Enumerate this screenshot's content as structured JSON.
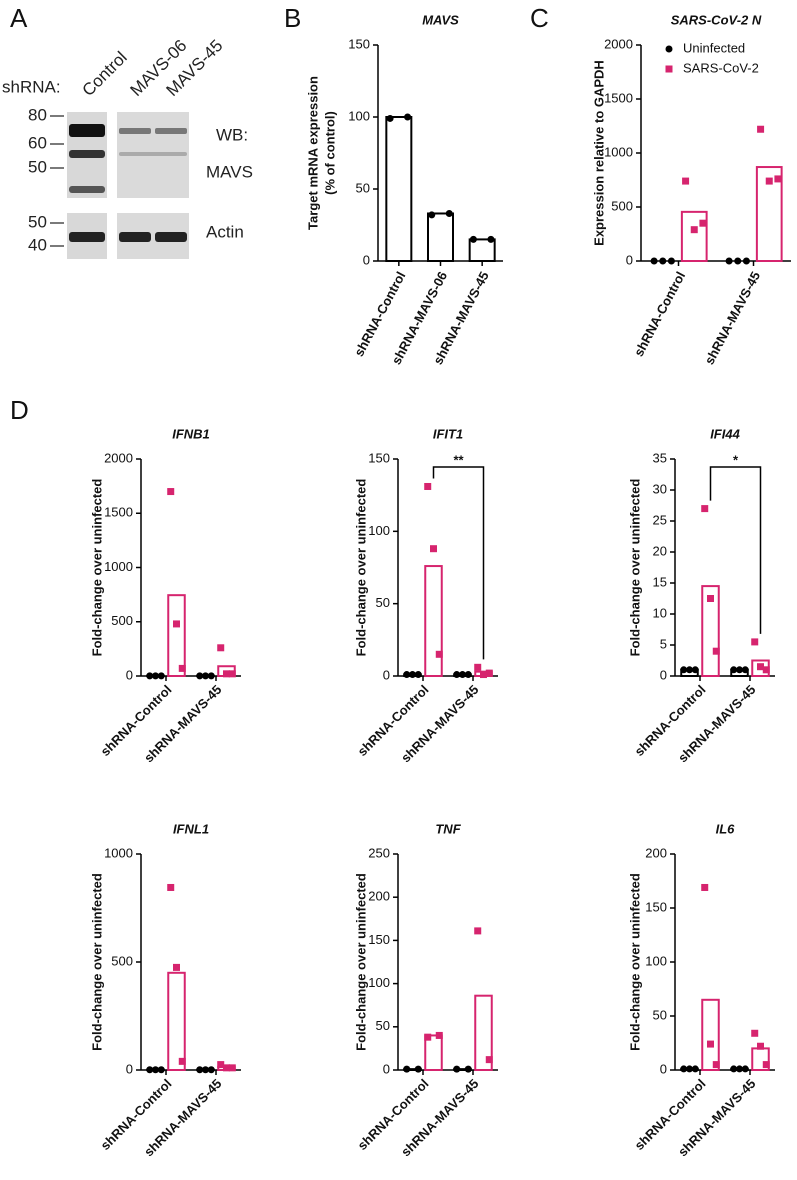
{
  "panel_labels": [
    "A",
    "B",
    "C",
    "D"
  ],
  "blot": {
    "row_label": "shRNA:",
    "lanes": [
      "Control",
      "MAVS-06",
      "MAVS-45"
    ],
    "wb_label": "WB:",
    "targets": [
      "MAVS",
      "Actin"
    ],
    "markers": [
      "80",
      "60",
      "50",
      "50",
      "40"
    ]
  },
  "chart_data": [
    {
      "type": "bar",
      "title": "MAVS",
      "ylabel": [
        "Target mRNA expression",
        "(% of control)"
      ],
      "categories": [
        "shRNA-Control",
        "shRNA-MAVS-06",
        "shRNA-MAVS-45"
      ],
      "values": [
        100,
        33,
        15
      ],
      "points": [
        [
          99,
          100
        ],
        [
          32,
          33
        ],
        [
          15,
          15
        ]
      ],
      "color": "#000000",
      "marker": "circle",
      "ylim": [
        0,
        150
      ],
      "yticks": [
        0,
        50,
        100,
        150
      ]
    },
    {
      "type": "bar",
      "title": "SARS-CoV-2 N",
      "ylabel": "Expression relative to GAPDH",
      "categories": [
        "shRNA-Control",
        "shRNA-MAVS-45"
      ],
      "legend": "upper right",
      "series": [
        {
          "name": "Uninfected",
          "color": "#000000",
          "marker": "circle",
          "values": [
            0,
            0
          ],
          "points": [
            [
              0,
              0,
              0
            ],
            [
              0,
              0,
              0
            ]
          ]
        },
        {
          "name": "SARS-CoV-2",
          "color": "#d6246e",
          "marker": "square",
          "values": [
            455,
            870
          ],
          "points": [
            [
              740,
              290,
              350
            ],
            [
              1220,
              740,
              760
            ]
          ]
        }
      ],
      "ylim": [
        0,
        2000
      ],
      "yticks": [
        0,
        500,
        1000,
        1500,
        2000
      ]
    },
    {
      "type": "bar",
      "title": "IFNB1",
      "ylabel": "Fold-change over uninfected",
      "categories": [
        "shRNA-Control",
        "shRNA-MAVS-45"
      ],
      "series": [
        {
          "color": "#000000",
          "marker": "circle",
          "values": [
            1,
            1
          ],
          "points": [
            [
              1,
              1,
              1
            ],
            [
              1,
              1,
              1
            ]
          ]
        },
        {
          "color": "#d6246e",
          "marker": "square",
          "values": [
            745,
            90
          ],
          "points": [
            [
              1700,
              480,
              70
            ],
            [
              260,
              20,
              20
            ]
          ]
        }
      ],
      "ylim": [
        0,
        2000
      ],
      "yticks": [
        0,
        500,
        1000,
        1500,
        2000
      ]
    },
    {
      "type": "bar",
      "title": "IFIT1",
      "ylabel": "Fold-change over uninfected",
      "categories": [
        "shRNA-Control",
        "shRNA-MAVS-45"
      ],
      "annotation": "**",
      "series": [
        {
          "color": "#000000",
          "marker": "circle",
          "values": [
            1,
            1
          ],
          "points": [
            [
              1,
              1,
              1
            ],
            [
              1,
              1,
              1
            ]
          ]
        },
        {
          "color": "#d6246e",
          "marker": "square",
          "values": [
            76,
            3
          ],
          "points": [
            [
              131,
              88,
              15
            ],
            [
              6,
              1,
              2
            ]
          ]
        }
      ],
      "ylim": [
        0,
        150
      ],
      "yticks": [
        0,
        50,
        100,
        150
      ]
    },
    {
      "type": "bar",
      "title": "IFI44",
      "ylabel": "Fold-change over uninfected",
      "categories": [
        "shRNA-Control",
        "shRNA-MAVS-45"
      ],
      "annotation": "*",
      "series": [
        {
          "color": "#000000",
          "marker": "circle",
          "values": [
            1,
            1
          ],
          "points": [
            [
              1,
              1,
              1
            ],
            [
              1,
              1,
              1
            ]
          ]
        },
        {
          "color": "#d6246e",
          "marker": "square",
          "values": [
            14.5,
            2.5
          ],
          "points": [
            [
              27,
              12.5,
              4
            ],
            [
              5.5,
              1.5,
              1
            ]
          ]
        }
      ],
      "ylim": [
        0,
        35
      ],
      "yticks": [
        0,
        5,
        10,
        15,
        20,
        25,
        30,
        35
      ]
    },
    {
      "type": "bar",
      "title": "IFNL1",
      "ylabel": "Fold-change over uninfected",
      "categories": [
        "shRNA-Control",
        "shRNA-MAVS-45"
      ],
      "series": [
        {
          "color": "#000000",
          "marker": "circle",
          "values": [
            1,
            1
          ],
          "points": [
            [
              1,
              1,
              1
            ],
            [
              1,
              1,
              1
            ]
          ]
        },
        {
          "color": "#d6246e",
          "marker": "square",
          "values": [
            450,
            15
          ],
          "points": [
            [
              845,
              475,
              40
            ],
            [
              25,
              10,
              10
            ]
          ]
        }
      ],
      "ylim": [
        0,
        1000
      ],
      "yticks": [
        0,
        500,
        1000
      ]
    },
    {
      "type": "bar",
      "title": "TNF",
      "ylabel": "Fold-change over uninfected",
      "categories": [
        "shRNA-Control",
        "shRNA-MAVS-45"
      ],
      "series": [
        {
          "color": "#000000",
          "marker": "circle",
          "values": [
            1,
            1
          ],
          "points": [
            [
              1,
              1
            ],
            [
              1,
              1
            ]
          ]
        },
        {
          "color": "#d6246e",
          "marker": "square",
          "values": [
            40,
            86
          ],
          "points": [
            [
              38,
              40
            ],
            [
              161,
              12
            ]
          ]
        }
      ],
      "ylim": [
        0,
        250
      ],
      "yticks": [
        0,
        50,
        100,
        150,
        200,
        250
      ]
    },
    {
      "type": "bar",
      "title": "IL6",
      "ylabel": "Fold-change over uninfected",
      "categories": [
        "shRNA-Control",
        "shRNA-MAVS-45"
      ],
      "series": [
        {
          "color": "#000000",
          "marker": "circle",
          "values": [
            1,
            1
          ],
          "points": [
            [
              1,
              1,
              1
            ],
            [
              1,
              1,
              1
            ]
          ]
        },
        {
          "color": "#d6246e",
          "marker": "square",
          "values": [
            65,
            20
          ],
          "points": [
            [
              169,
              24,
              5
            ],
            [
              34,
              22,
              5
            ]
          ]
        }
      ],
      "ylim": [
        0,
        200
      ],
      "yticks": [
        0,
        50,
        100,
        150,
        200
      ]
    }
  ]
}
